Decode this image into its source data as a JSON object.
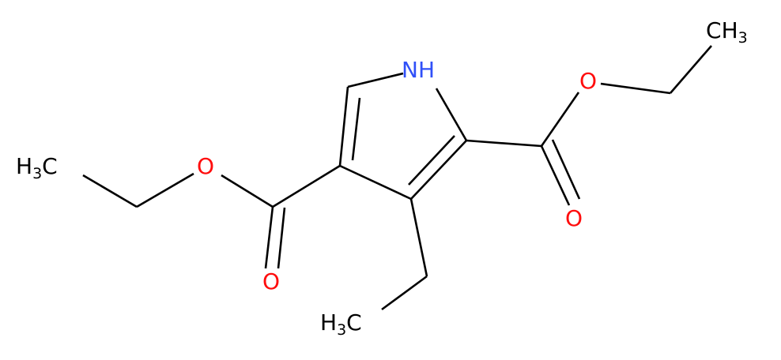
{
  "atoms": [
    {
      "parts": [
        "N",
        "H"
      ]
    },
    {
      "parts": [
        "O"
      ]
    },
    {
      "parts": [
        "O"
      ]
    },
    {
      "parts": [
        "O"
      ]
    },
    {
      "parts": [
        "O"
      ]
    },
    {
      "parts": [
        "C",
        "H",
        "3"
      ]
    },
    {
      "parts": [
        "H",
        "3",
        "C"
      ]
    },
    {
      "parts": [
        "H",
        "3",
        "C"
      ]
    }
  ]
}
